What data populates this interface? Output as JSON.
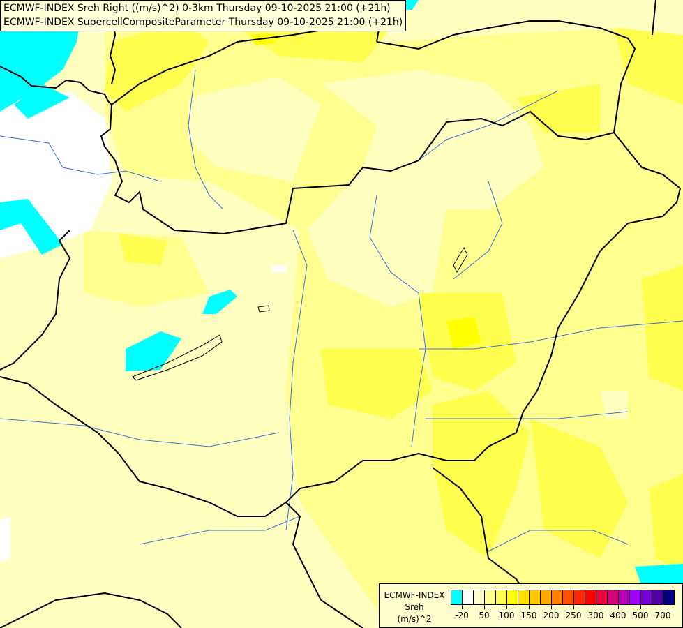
{
  "header": {
    "line1": "ECMWF-INDEX Sreh Right ((m/s)^2) 0-3km Thursday 09-10-2025 21:00 (+21h)",
    "line2": "ECMWF-INDEX SupercellCompositeParameter Thursday 09-10-2025 21:00 (+21h)"
  },
  "legend": {
    "title": "ECMWF-INDEX",
    "variable": "Sreh",
    "unit": "(m/s)^2",
    "colors": [
      "#00ffff",
      "#ffffff",
      "#ffffd0",
      "#ffff90",
      "#ffff50",
      "#ffff00",
      "#ffe000",
      "#ffc800",
      "#ffa800",
      "#ff8000",
      "#ff5000",
      "#ff2800",
      "#ff0000",
      "#e8003c",
      "#d00078",
      "#b400b4",
      "#a000ff",
      "#7800d0",
      "#5000a0",
      "#000080"
    ],
    "labels": [
      {
        "text": "-20",
        "after_box": 1
      },
      {
        "text": "50",
        "after_box": 3
      },
      {
        "text": "100",
        "after_box": 5
      },
      {
        "text": "150",
        "after_box": 7
      },
      {
        "text": "200",
        "after_box": 9
      },
      {
        "text": "250",
        "after_box": 11
      },
      {
        "text": "300",
        "after_box": 13
      },
      {
        "text": "400",
        "after_box": 15
      },
      {
        "text": "500",
        "after_box": 17
      },
      {
        "text": "700",
        "after_box": 19
      }
    ]
  },
  "map_colors": {
    "background": "#ffffc0",
    "light_yellow": "#ffff90",
    "yellow": "#ffff50",
    "bright_yellow": "#ffff00",
    "negative": "#00ffff",
    "neutral": "#ffffff",
    "borders": "#000000",
    "rivers": "#3a6fd8"
  }
}
